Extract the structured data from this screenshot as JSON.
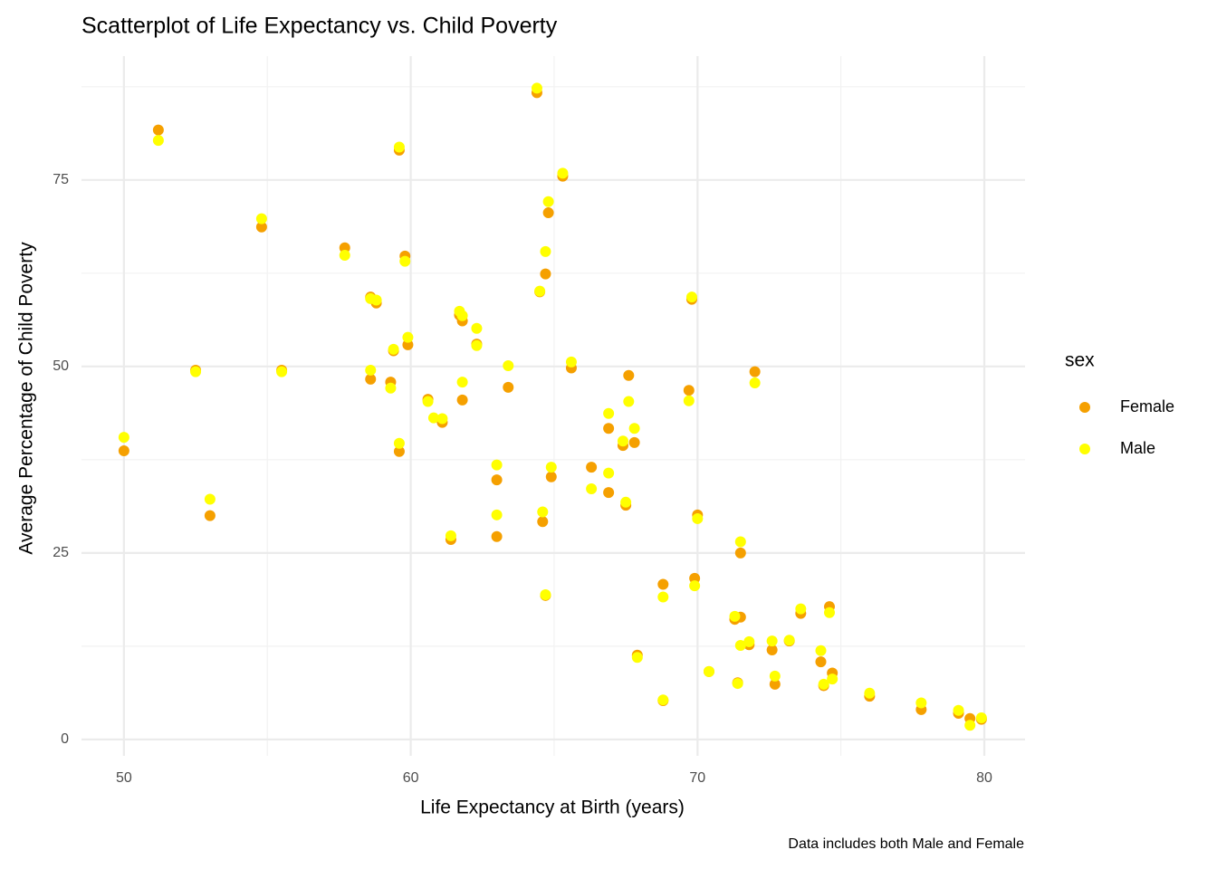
{
  "chart_data": {
    "type": "scatter",
    "title": "Scatterplot of Life Expectancy vs. Child Poverty",
    "x_label": "Life Expectancy at Birth (years)",
    "y_label": "Average Percentage of Child Poverty",
    "caption": "Data includes both Male and Female",
    "legend_title": "sex",
    "legend_position": "right",
    "grid": true,
    "xlim": [
      48.52,
      81.42
    ],
    "ylim": [
      -2.2,
      91.6
    ],
    "xticks": [
      50,
      60,
      70,
      80
    ],
    "yticks": [
      0,
      25,
      50,
      75
    ],
    "series": [
      {
        "name": "Female",
        "color": "#f5a000",
        "x": [
          50.0,
          51.2,
          52.5,
          53.0,
          54.8,
          55.5,
          57.7,
          58.6,
          58.6,
          58.8,
          59.3,
          59.4,
          59.6,
          59.6,
          59.8,
          59.9,
          60.6,
          61.1,
          61.4,
          61.7,
          61.8,
          61.8,
          62.3,
          63.0,
          63.0,
          63.4,
          64.4,
          64.5,
          64.6,
          64.7,
          64.7,
          64.8,
          64.9,
          65.3,
          65.6,
          66.3,
          66.9,
          66.9,
          67.4,
          67.5,
          67.6,
          67.8,
          67.9,
          68.8,
          68.8,
          69.7,
          69.8,
          69.9,
          70.0,
          70.4,
          71.3,
          71.5,
          71.4,
          71.5,
          71.8,
          72.0,
          72.6,
          72.7,
          73.2,
          73.6,
          74.3,
          74.4,
          74.6,
          74.7,
          76.0,
          77.8,
          79.1,
          79.5,
          79.9
        ],
        "y": [
          38.7,
          81.7,
          49.5,
          30.0,
          68.7,
          49.5,
          65.9,
          59.3,
          48.3,
          58.5,
          47.9,
          52.1,
          38.6,
          79.0,
          64.8,
          52.9,
          45.6,
          42.5,
          26.8,
          56.9,
          56.1,
          45.5,
          53.0,
          34.8,
          27.2,
          47.2,
          86.7,
          60.0,
          29.2,
          62.4,
          19.3,
          70.6,
          35.2,
          75.5,
          49.8,
          36.5,
          41.7,
          33.1,
          39.4,
          31.4,
          48.8,
          39.8,
          11.3,
          20.8,
          5.2,
          46.8,
          59.0,
          21.6,
          30.1,
          9.1,
          16.1,
          25.0,
          7.6,
          16.4,
          12.7,
          49.3,
          12.0,
          7.4,
          13.2,
          16.9,
          10.4,
          7.2,
          17.8,
          8.9,
          5.8,
          4.0,
          3.5,
          2.8,
          2.7
        ]
      },
      {
        "name": "Male",
        "color": "#ffff00",
        "x": [
          50.0,
          51.2,
          52.5,
          53.0,
          54.8,
          55.5,
          57.7,
          58.6,
          58.6,
          58.8,
          59.3,
          59.4,
          59.6,
          59.6,
          59.8,
          59.9,
          60.6,
          61.1,
          60.8,
          61.4,
          61.7,
          61.8,
          61.8,
          62.3,
          62.3,
          63.0,
          63.0,
          63.4,
          64.4,
          64.5,
          64.6,
          64.7,
          64.7,
          64.8,
          64.9,
          65.3,
          65.6,
          66.3,
          66.9,
          66.9,
          67.4,
          67.5,
          67.6,
          67.8,
          67.9,
          68.8,
          68.8,
          69.7,
          69.8,
          69.9,
          70.0,
          70.4,
          71.3,
          71.5,
          71.4,
          71.5,
          71.8,
          72.0,
          72.6,
          72.7,
          73.2,
          73.6,
          74.3,
          74.4,
          74.6,
          74.7,
          76.0,
          77.8,
          79.1,
          79.5,
          79.9
        ],
        "y": [
          40.5,
          80.3,
          49.3,
          32.2,
          69.8,
          49.3,
          64.9,
          59.1,
          49.5,
          58.9,
          47.1,
          52.3,
          39.7,
          79.4,
          64.1,
          53.9,
          45.3,
          43.0,
          43.1,
          27.3,
          57.4,
          56.8,
          47.9,
          52.8,
          55.1,
          36.8,
          30.1,
          50.1,
          87.3,
          60.1,
          30.5,
          65.4,
          19.4,
          72.1,
          36.5,
          75.9,
          50.6,
          33.6,
          43.7,
          35.7,
          40.0,
          31.8,
          45.3,
          41.7,
          11.0,
          19.1,
          5.3,
          45.4,
          59.3,
          20.6,
          29.6,
          9.1,
          16.5,
          26.5,
          7.5,
          12.6,
          13.1,
          47.8,
          13.2,
          8.5,
          13.3,
          17.5,
          11.9,
          7.4,
          17.0,
          8.1,
          6.2,
          4.9,
          3.9,
          1.9,
          2.9
        ]
      }
    ]
  }
}
